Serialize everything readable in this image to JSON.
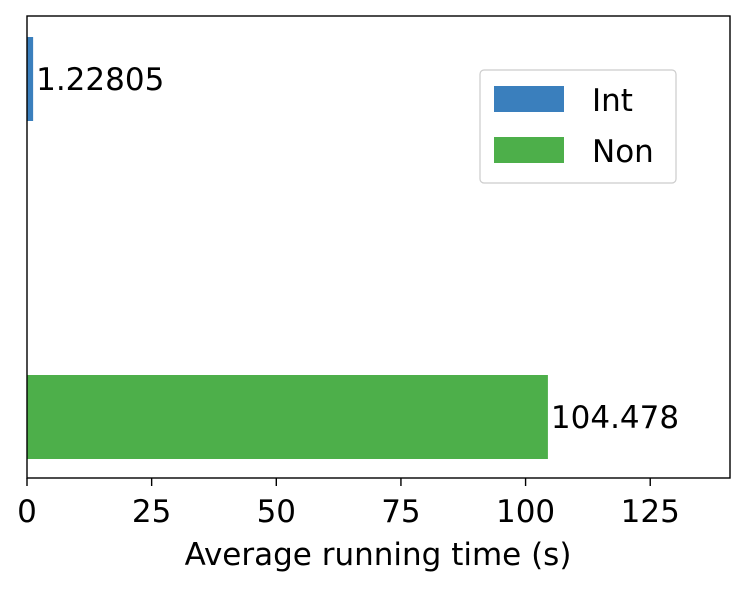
{
  "chart_data": {
    "type": "bar",
    "orientation": "horizontal",
    "xlabel": "Average running time (s)",
    "ylabel": "",
    "xlim": [
      0,
      141
    ],
    "xticks": [
      0,
      25,
      50,
      75,
      100,
      125
    ],
    "xtick_labels": [
      "0",
      "25",
      "50",
      "75",
      "100",
      "125"
    ],
    "grid": false,
    "legend_position": "top-right",
    "series": [
      {
        "name": "Int",
        "value": 1.22805,
        "label": "1.22805",
        "color": "#3a7fbd"
      },
      {
        "name": "Non",
        "value": 104.478,
        "label": "104.478",
        "color": "#4daf4a"
      }
    ]
  }
}
